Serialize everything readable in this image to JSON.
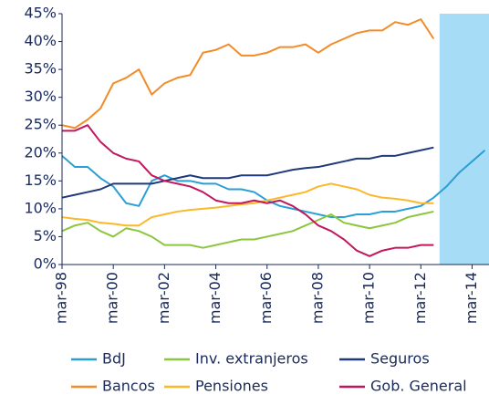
{
  "chart_data": {
    "type": "line",
    "x": [
      1998.17,
      1998.67,
      1999.17,
      1999.67,
      2000.17,
      2000.67,
      2001.17,
      2001.67,
      2002.17,
      2002.67,
      2003.17,
      2003.67,
      2004.17,
      2004.67,
      2005.17,
      2005.67,
      2006.17,
      2006.67,
      2007.17,
      2007.67,
      2008.17,
      2008.67,
      2009.17,
      2009.67,
      2010.17,
      2010.67,
      2011.17,
      2011.67,
      2012.17,
      2012.67,
      2013.17,
      2013.67,
      2014.17,
      2014.67
    ],
    "series": [
      {
        "name": "BdJ",
        "color": "#2a9fd6",
        "values": [
          19.5,
          17.5,
          17.5,
          15.5,
          14,
          11,
          10.5,
          15,
          16,
          15,
          15,
          14.5,
          14.5,
          13.5,
          13.5,
          13,
          11.5,
          10.5,
          10,
          9.5,
          9,
          8.5,
          8.5,
          9,
          9,
          9.5,
          9.5,
          10,
          10.5,
          12,
          14,
          16.5,
          18.5,
          20.5
        ]
      },
      {
        "name": "Bancos",
        "color": "#f28c28",
        "values": [
          25,
          24.5,
          26,
          28,
          32.5,
          33.5,
          35,
          30.5,
          32.5,
          33.5,
          34,
          38,
          38.5,
          39.5,
          37.5,
          37.5,
          38,
          39,
          39,
          39.5,
          38,
          39.5,
          40.5,
          41.5,
          42,
          42,
          43.5,
          43,
          44,
          40.5,
          null,
          null,
          null,
          null
        ]
      },
      {
        "name": "Inv. extranjeros",
        "color": "#8cc63f",
        "values": [
          6,
          7,
          7.5,
          6,
          5,
          6.5,
          6,
          5,
          3.5,
          3.5,
          3.5,
          3,
          3.5,
          4,
          4.5,
          4.5,
          5,
          5.5,
          6,
          7,
          8,
          9,
          7.5,
          7,
          6.5,
          7,
          7.5,
          8.5,
          9,
          9.5,
          null,
          null,
          null,
          null
        ]
      },
      {
        "name": "Pensiones",
        "color": "#fbb829",
        "values": [
          8.5,
          8.2,
          8,
          7.5,
          7.3,
          7,
          7,
          8.5,
          9,
          9.5,
          9.8,
          10,
          10.2,
          10.5,
          10.8,
          11,
          11.5,
          12,
          12.5,
          13,
          14,
          14.5,
          14,
          13.5,
          12.5,
          12,
          11.8,
          11.5,
          11,
          11,
          null,
          null,
          null,
          null
        ]
      },
      {
        "name": "Seguros",
        "color": "#1f3a7a",
        "values": [
          12,
          12.5,
          13,
          13.5,
          14.5,
          14.5,
          14.5,
          14.5,
          15,
          15.5,
          16,
          15.5,
          15.5,
          15.5,
          16,
          16,
          16,
          16.5,
          17,
          17.3,
          17.5,
          18,
          18.5,
          19,
          19,
          19.5,
          19.5,
          20,
          20.5,
          21,
          null,
          null,
          null,
          null
        ]
      },
      {
        "name": "Gob. General",
        "color": "#c0185e",
        "values": [
          24,
          24,
          25,
          22,
          20,
          19,
          18.5,
          16,
          15,
          14.5,
          14,
          13,
          11.5,
          11,
          11,
          11.5,
          11,
          11.5,
          10.5,
          9,
          7,
          6,
          4.5,
          2.5,
          1.5,
          2.5,
          3,
          3,
          3.5,
          3.5,
          null,
          null,
          null,
          null
        ]
      }
    ],
    "legend_order": [
      0,
      2,
      4,
      1,
      3,
      5
    ],
    "shaded_region": [
      2012.9,
      2014.83
    ],
    "shade_color": "#a6dcf5",
    "xlim": [
      1998.17,
      2014.83
    ],
    "xticks": [
      {
        "value": 1998.17,
        "label": "mar-98"
      },
      {
        "value": 2000.17,
        "label": "mar-00"
      },
      {
        "value": 2002.17,
        "label": "mar-02"
      },
      {
        "value": 2004.17,
        "label": "mar-04"
      },
      {
        "value": 2006.17,
        "label": "mar-06"
      },
      {
        "value": 2008.17,
        "label": "mar-08"
      },
      {
        "value": 2010.17,
        "label": "mar-10"
      },
      {
        "value": 2012.17,
        "label": "mar-12"
      },
      {
        "value": 2014.17,
        "label": "mar-14"
      }
    ],
    "ylim": [
      0,
      45
    ],
    "yticks": [
      {
        "value": 0,
        "label": "0%"
      },
      {
        "value": 5,
        "label": "5%"
      },
      {
        "value": 10,
        "label": "10%"
      },
      {
        "value": 15,
        "label": "15%"
      },
      {
        "value": 20,
        "label": "20%"
      },
      {
        "value": 25,
        "label": "25%"
      },
      {
        "value": 30,
        "label": "30%"
      },
      {
        "value": 35,
        "label": "35%"
      },
      {
        "value": 40,
        "label": "40%"
      },
      {
        "value": 45,
        "label": "45%"
      }
    ]
  }
}
